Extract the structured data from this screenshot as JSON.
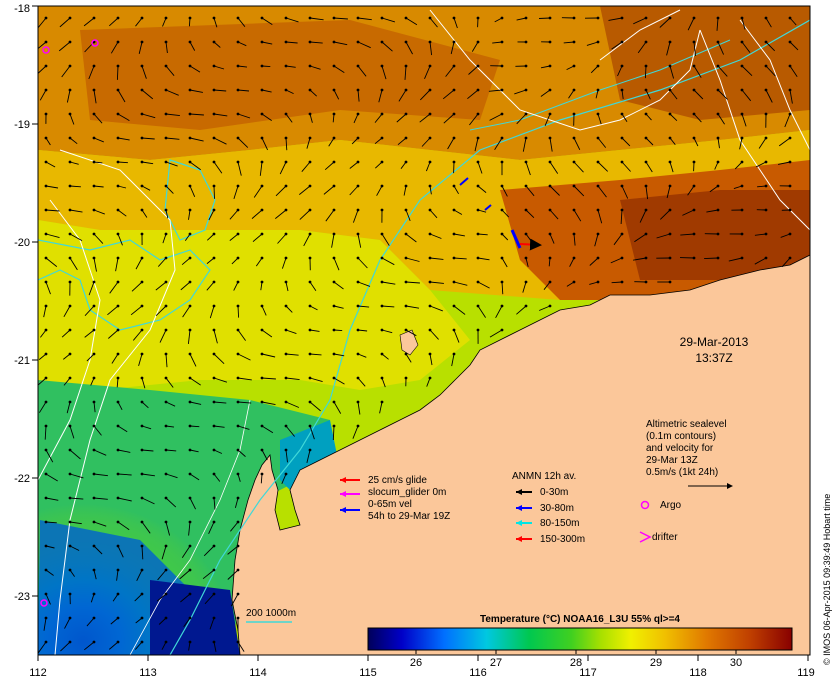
{
  "map": {
    "date": "29-Mar-2013",
    "time": "13:37Z",
    "credit": "© IMOS 06-Apr-2015 09:39:49 Hobart time",
    "lon_ticks": [
      "112",
      "113",
      "114",
      "115",
      "116",
      "117",
      "118",
      "119"
    ],
    "lat_ticks": [
      "-18",
      "-19",
      "-20",
      "-21",
      "-22",
      "-23"
    ],
    "lon_range": [
      112,
      119
    ],
    "lat_range": [
      -23.5,
      -18
    ]
  },
  "legend_glider": {
    "items": [
      {
        "label": "25 cm/s glide",
        "color": "#ff0000"
      },
      {
        "label": "slocum_glider 0m",
        "color": "#ff00ff"
      },
      {
        "label": "0-65m vel",
        "color": "#ff00ff"
      },
      {
        "label": "54h to 29-Mar 19Z",
        "color": "#0000ff"
      }
    ]
  },
  "legend_anmn": {
    "title": "ANMN 12h av.",
    "items": [
      {
        "label": "0-30m",
        "color": "#000000"
      },
      {
        "label": "30-80m",
        "color": "#0000ff"
      },
      {
        "label": "80-150m",
        "color": "#00e5e5"
      },
      {
        "label": "150-300m",
        "color": "#ff0000"
      }
    ]
  },
  "legend_altimetry": {
    "lines": [
      "Altimetric sealevel",
      "(0.1m contours)",
      "and velocity for",
      "29-Mar 13Z",
      "0.5m/s (1kt 24h)"
    ]
  },
  "legend_markers": {
    "argo": "Argo",
    "drifter": "drifter",
    "argo_color": "#ff00ff",
    "drifter_color": "#ff00ff"
  },
  "isobath_legend": "200  1000m",
  "colorbar": {
    "title": "Temperature (°C) NOAA16_L3U 55% ql>=4",
    "ticks": [
      "26",
      "27",
      "28",
      "29",
      "30"
    ],
    "tick_values": [
      26,
      27,
      28,
      29,
      30
    ],
    "range": [
      25.4,
      30.7
    ]
  },
  "colors": {
    "land": "#fbc79a",
    "isobath": "#40d8d8",
    "contour": "#ffffff"
  }
}
